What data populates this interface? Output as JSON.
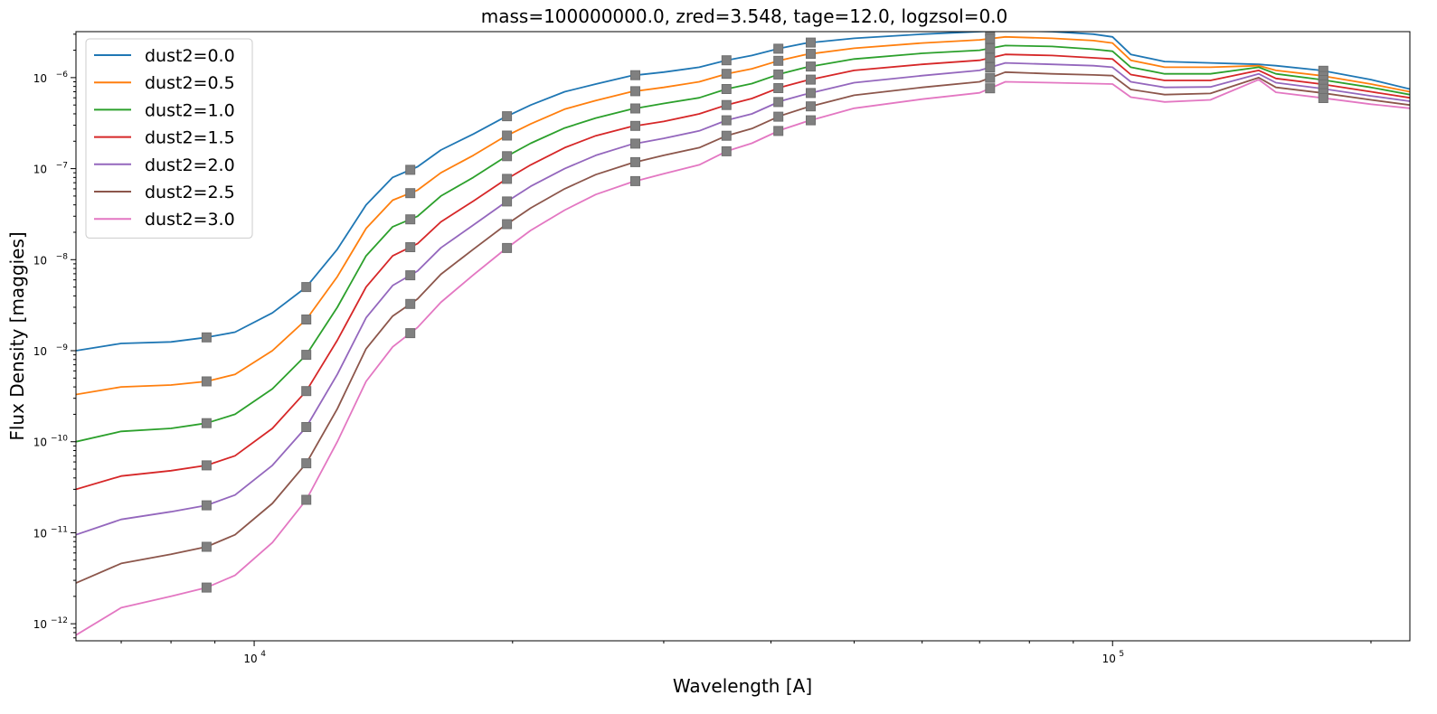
{
  "chart_data": {
    "type": "line",
    "title": "mass=100000000.0, zred=3.548, tage=12.0, logzsol=0.0",
    "xlabel": "Wavelength [A]",
    "ylabel": "Flux Density [maggies]",
    "xscale": "log",
    "yscale": "log",
    "xlim": [
      6200,
      222000
    ],
    "ylim": [
      6.5e-13,
      3.2e-06
    ],
    "x_tick_labels": [
      {
        "base": "10",
        "exp": "4",
        "value": 10000
      },
      {
        "base": "10",
        "exp": "5",
        "value": 100000
      }
    ],
    "y_tick_labels": [
      {
        "base": "10",
        "exp": "−12",
        "value": 1e-12
      },
      {
        "base": "10",
        "exp": "−11",
        "value": 1e-11
      },
      {
        "base": "10",
        "exp": "−10",
        "value": 1e-10
      },
      {
        "base": "10",
        "exp": "−9",
        "value": 1e-09
      },
      {
        "base": "10",
        "exp": "−8",
        "value": 1e-08
      },
      {
        "base": "10",
        "exp": "−7",
        "value": 1e-07
      },
      {
        "base": "10",
        "exp": "−6",
        "value": 1e-06
      }
    ],
    "grid": false,
    "legend_position": "upper left",
    "x": [
      6200,
      7000,
      8000,
      8800,
      9500,
      10500,
      11500,
      12500,
      13500,
      14500,
      15500,
      16500,
      18000,
      19500,
      21000,
      23000,
      25000,
      27500,
      30000,
      33000,
      35500,
      38000,
      41000,
      44000,
      50000,
      60000,
      70000,
      75000,
      85000,
      95000,
      100000,
      105000,
      115000,
      130000,
      148000,
      155000,
      175000,
      200000,
      222000
    ],
    "series": [
      {
        "name": "dust2=0.0",
        "color": "#1f77b4",
        "values": [
          1e-09,
          1.2e-09,
          1.25e-09,
          1.4e-09,
          1.6e-09,
          2.6e-09,
          5e-09,
          1.3e-08,
          4e-08,
          8e-08,
          1.05e-07,
          1.6e-07,
          2.4e-07,
          3.6e-07,
          5e-07,
          7e-07,
          8.5e-07,
          1.05e-06,
          1.15e-06,
          1.3e-06,
          1.55e-06,
          1.75e-06,
          2.1e-06,
          2.4e-06,
          2.7e-06,
          3e-06,
          3.2e-06,
          3.3e-06,
          3.2e-06,
          3e-06,
          2.8e-06,
          1.8e-06,
          1.5e-06,
          1.45e-06,
          1.4e-06,
          1.35e-06,
          1.2e-06,
          9.5e-07,
          7.5e-07
        ]
      },
      {
        "name": "dust2=0.5",
        "color": "#ff7f0e",
        "values": [
          3.3e-10,
          4e-10,
          4.2e-10,
          4.6e-10,
          5.5e-10,
          1e-09,
          2.2e-09,
          6.5e-09,
          2.2e-08,
          4.5e-08,
          5.8e-08,
          9e-08,
          1.4e-07,
          2.2e-07,
          3.1e-07,
          4.5e-07,
          5.6e-07,
          7e-07,
          7.8e-07,
          9e-07,
          1.1e-06,
          1.25e-06,
          1.55e-06,
          1.8e-06,
          2.1e-06,
          2.4e-06,
          2.6e-06,
          2.8e-06,
          2.7e-06,
          2.55e-06,
          2.4e-06,
          1.55e-06,
          1.3e-06,
          1.3e-06,
          1.35e-06,
          1.2e-06,
          1.05e-06,
          8.5e-07,
          7e-07
        ]
      },
      {
        "name": "dust2=1.0",
        "color": "#2ca02c",
        "values": [
          1e-10,
          1.3e-10,
          1.4e-10,
          1.6e-10,
          2e-10,
          3.8e-10,
          9e-10,
          3e-09,
          1.1e-08,
          2.3e-08,
          3e-08,
          5e-08,
          8e-08,
          1.3e-07,
          1.9e-07,
          2.8e-07,
          3.6e-07,
          4.5e-07,
          5.2e-07,
          6e-07,
          7.5e-07,
          8.6e-07,
          1.1e-06,
          1.3e-06,
          1.6e-06,
          1.85e-06,
          2e-06,
          2.25e-06,
          2.2e-06,
          2.05e-06,
          1.95e-06,
          1.3e-06,
          1.1e-06,
          1.1e-06,
          1.3e-06,
          1.1e-06,
          9.5e-07,
          7.8e-07,
          6.5e-07
        ]
      },
      {
        "name": "dust2=1.5",
        "color": "#d62728",
        "values": [
          3e-11,
          4.2e-11,
          4.8e-11,
          5.5e-11,
          7e-11,
          1.4e-10,
          3.6e-10,
          1.3e-09,
          5e-09,
          1.1e-08,
          1.5e-08,
          2.6e-08,
          4.4e-08,
          7.3e-08,
          1.1e-07,
          1.7e-07,
          2.3e-07,
          2.9e-07,
          3.3e-07,
          4e-07,
          5e-07,
          5.9e-07,
          7.8e-07,
          9.3e-07,
          1.2e-06,
          1.4e-06,
          1.55e-06,
          1.8e-06,
          1.75e-06,
          1.65e-06,
          1.6e-06,
          1.08e-06,
          9.3e-07,
          9.3e-07,
          1.2e-06,
          9.8e-07,
          8.5e-07,
          7e-07,
          6e-07
        ]
      },
      {
        "name": "dust2=2.0",
        "color": "#9467bd",
        "values": [
          9.5e-12,
          1.4e-11,
          1.7e-11,
          2e-11,
          2.6e-11,
          5.5e-11,
          1.45e-10,
          5.5e-10,
          2.3e-09,
          5.2e-09,
          7.5e-09,
          1.35e-08,
          2.4e-08,
          4.1e-08,
          6.4e-08,
          1e-07,
          1.4e-07,
          1.85e-07,
          2.15e-07,
          2.6e-07,
          3.4e-07,
          4e-07,
          5.5e-07,
          6.6e-07,
          8.8e-07,
          1.05e-06,
          1.2e-06,
          1.45e-06,
          1.4e-06,
          1.35e-06,
          1.3e-06,
          9e-07,
          7.8e-07,
          7.9e-07,
          1.1e-06,
          8.8e-07,
          7.6e-07,
          6.3e-07,
          5.5e-07
        ]
      },
      {
        "name": "dust2=2.5",
        "color": "#8c564b",
        "values": [
          2.8e-12,
          4.6e-12,
          5.8e-12,
          7e-12,
          9.5e-12,
          2.1e-11,
          5.8e-11,
          2.3e-10,
          1.05e-09,
          2.4e-09,
          3.7e-09,
          6.9e-09,
          1.3e-08,
          2.3e-08,
          3.7e-08,
          6e-08,
          8.6e-08,
          1.15e-07,
          1.4e-07,
          1.7e-07,
          2.3e-07,
          2.75e-07,
          3.8e-07,
          4.7e-07,
          6.4e-07,
          7.8e-07,
          9e-07,
          1.15e-06,
          1.1e-06,
          1.07e-06,
          1.05e-06,
          7.4e-07,
          6.5e-07,
          6.7e-07,
          1e-06,
          7.8e-07,
          6.8e-07,
          5.7e-07,
          5e-07
        ]
      },
      {
        "name": "dust2=3.0",
        "color": "#e377c2",
        "values": [
          7.5e-13,
          1.5e-12,
          2e-12,
          2.5e-12,
          3.4e-12,
          7.8e-12,
          2.3e-11,
          1e-10,
          4.6e-10,
          1.1e-09,
          1.8e-09,
          3.4e-09,
          6.8e-09,
          1.25e-08,
          2.1e-08,
          3.5e-08,
          5.2e-08,
          7.1e-08,
          8.8e-08,
          1.1e-07,
          1.55e-07,
          1.9e-07,
          2.65e-07,
          3.3e-07,
          4.6e-07,
          5.8e-07,
          6.8e-07,
          9e-07,
          8.8e-07,
          8.6e-07,
          8.5e-07,
          6.1e-07,
          5.4e-07,
          5.7e-07,
          9.5e-07,
          6.9e-07,
          6e-07,
          5.1e-07,
          4.6e-07
        ]
      }
    ],
    "marker_color": "#808080",
    "marker_wavelengths": [
      8800,
      11500,
      15200,
      19700,
      27800,
      35500,
      40800,
      44500,
      72000,
      176000
    ]
  }
}
